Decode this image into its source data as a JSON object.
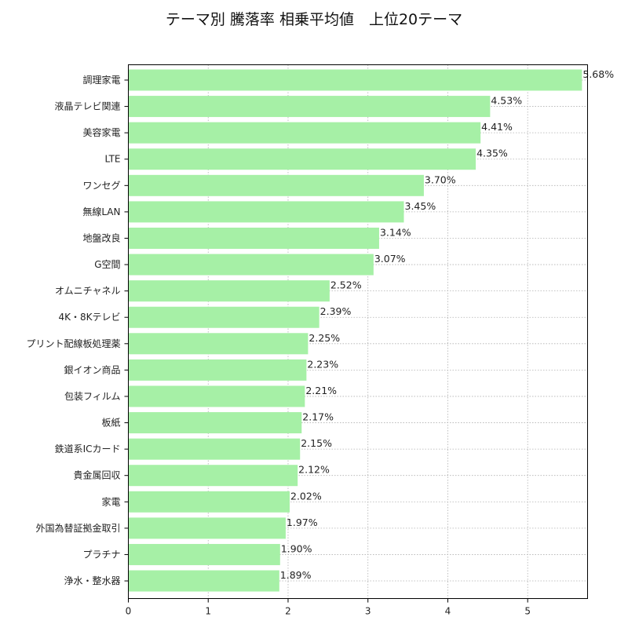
{
  "chart_data": {
    "type": "bar",
    "orientation": "horizontal",
    "title": "テーマ別 騰落率 相乗平均値　上位20テーマ",
    "xlabel": "",
    "ylabel": "",
    "xlim": [
      0,
      5.75
    ],
    "xticks": [
      0,
      1,
      2,
      3,
      4,
      5
    ],
    "grid": true,
    "bar_color": "#a6f0a6",
    "categories": [
      "調理家電",
      "液晶テレビ関連",
      "美容家電",
      "LTE",
      "ワンセグ",
      "無線LAN",
      "地盤改良",
      "G空間",
      "オムニチャネル",
      "4K・8Kテレビ",
      "プリント配線板処理薬",
      "銀イオン商品",
      "包装フィルム",
      "板紙",
      "鉄道系ICカード",
      "貴金属回収",
      "家電",
      "外国為替証拠金取引",
      "プラチナ",
      "浄水・整水器"
    ],
    "values": [
      5.68,
      4.53,
      4.41,
      4.35,
      3.7,
      3.45,
      3.14,
      3.07,
      2.52,
      2.39,
      2.25,
      2.23,
      2.21,
      2.17,
      2.15,
      2.12,
      2.02,
      1.97,
      1.9,
      1.89
    ],
    "data_labels": [
      "5.68%",
      "4.53%",
      "4.41%",
      "4.35%",
      "3.70%",
      "3.45%",
      "3.14%",
      "3.07%",
      "2.52%",
      "2.39%",
      "2.25%",
      "2.23%",
      "2.21%",
      "2.17%",
      "2.15%",
      "2.12%",
      "2.02%",
      "1.97%",
      "1.90%",
      "1.89%"
    ]
  }
}
